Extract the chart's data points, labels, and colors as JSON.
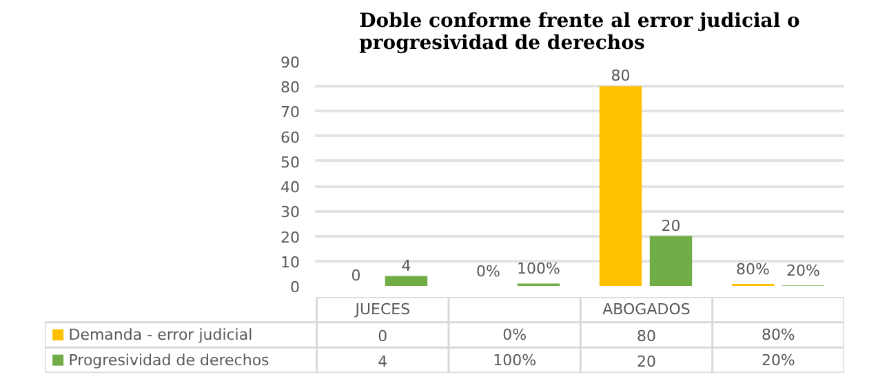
{
  "chart_data": {
    "type": "bar",
    "title": "Doble conforme frente al error judicial o\nprogresividad de derechos",
    "categories": [
      "JUECES",
      null,
      "ABOGADOS",
      null
    ],
    "series": [
      {
        "name": "Demanda - error judicial",
        "color": "#ffc000",
        "values": [
          0,
          0,
          80,
          0.8
        ],
        "value_labels": [
          "0",
          "0%",
          "80",
          "80%"
        ]
      },
      {
        "name": "Progresividad de derechos",
        "color": "#70ad47",
        "values": [
          4,
          1,
          20,
          0.2
        ],
        "value_labels": [
          "4",
          "100%",
          "20",
          "20%"
        ]
      }
    ],
    "ylim": [
      0,
      90
    ],
    "yticks": [
      0,
      10,
      20,
      30,
      40,
      50,
      60,
      70,
      80,
      90
    ],
    "grid": "y",
    "legend": "bottom"
  }
}
